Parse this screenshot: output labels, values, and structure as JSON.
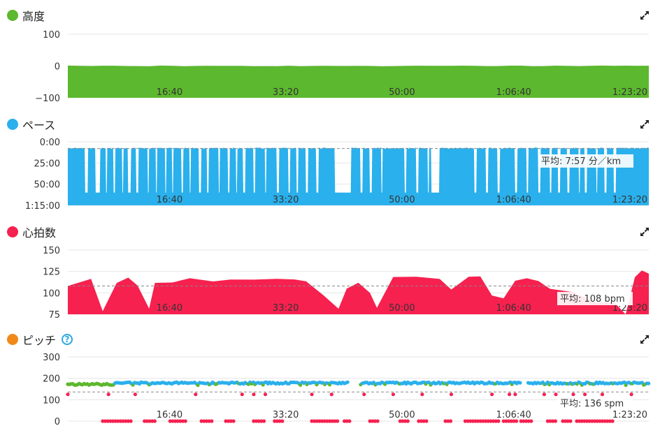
{
  "panels": [
    {
      "id": "altitude",
      "title": "高度",
      "color": "#5cb82e",
      "type": "area",
      "yticks": [
        "100",
        "0",
        "−100"
      ],
      "xticks": [
        "16:40",
        "33:20",
        "50:00",
        "1:06:40",
        "1:23:20"
      ],
      "avg_label": ""
    },
    {
      "id": "pace",
      "title": "ペース",
      "color": "#2ab0ec",
      "type": "area",
      "yticks": [
        "0:00",
        "25:00",
        "50:00",
        "1:15:00"
      ],
      "xticks": [
        "16:40",
        "33:20",
        "50:00",
        "1:06:40",
        "1:23:20"
      ],
      "avg_label": "平均: 7:57 分／km"
    },
    {
      "id": "heart",
      "title": "心拍数",
      "color": "#f6214f",
      "type": "area",
      "yticks": [
        "150",
        "125",
        "100",
        "75"
      ],
      "xticks": [
        "16:40",
        "33:20",
        "50:00",
        "1:06:40",
        "1:23:20"
      ],
      "avg_label": "平均: 108 bpm"
    },
    {
      "id": "cadence",
      "title": "ピッチ",
      "color": "#f0891a",
      "type": "scatter",
      "yticks": [
        "300",
        "200",
        "100",
        "0"
      ],
      "xticks": [
        "16:40",
        "33:20",
        "50:00",
        "1:06:40",
        "1:23:20"
      ],
      "avg_label": "平均: 136 spm"
    }
  ],
  "chart_data": [
    {
      "type": "area",
      "title": "高度",
      "ylim": [
        -100,
        100
      ],
      "xlim_seconds": [
        0,
        5000
      ],
      "x_tick_labels": [
        "16:40",
        "33:20",
        "50:00",
        "1:06:40",
        "1:23:20"
      ],
      "series": [
        {
          "values_constant": 0
        }
      ],
      "grid": true
    },
    {
      "type": "area",
      "title": "ペース",
      "ylim_minutes_per_km": [
        0,
        75
      ],
      "y_inverted": true,
      "average_minutes_per_km": 7.95,
      "x_tick_labels": [
        "16:40",
        "33:20",
        "50:00",
        "1:06:40",
        "1:23:20"
      ],
      "typical_pace_minutes_per_km": 7.5,
      "slow_segments_minutes_per_km": 60,
      "grid": true
    },
    {
      "type": "area",
      "title": "心拍数",
      "ylim": [
        75,
        150
      ],
      "average": 108,
      "x_tick_labels": [
        "16:40",
        "33:20",
        "50:00",
        "1:06:40",
        "1:23:20"
      ],
      "approx_profile": [
        [
          0,
          110
        ],
        [
          200,
          116
        ],
        [
          300,
          80
        ],
        [
          420,
          112
        ],
        [
          520,
          118
        ],
        [
          600,
          108
        ],
        [
          700,
          80
        ],
        [
          750,
          112
        ],
        [
          900,
          113
        ],
        [
          1050,
          118
        ],
        [
          1250,
          114
        ],
        [
          1400,
          116
        ],
        [
          1600,
          114
        ],
        [
          1800,
          115
        ],
        [
          1950,
          116
        ],
        [
          2050,
          112
        ],
        [
          2200,
          98
        ],
        [
          2330,
          80
        ],
        [
          2400,
          105
        ],
        [
          2500,
          112
        ],
        [
          2600,
          100
        ],
        [
          2660,
          82
        ],
        [
          2800,
          118
        ],
        [
          3000,
          120
        ],
        [
          3200,
          117
        ],
        [
          3300,
          105
        ],
        [
          3450,
          118
        ],
        [
          3550,
          120
        ],
        [
          3650,
          96
        ],
        [
          3750,
          92
        ],
        [
          3850,
          116
        ],
        [
          3950,
          118
        ],
        [
          4050,
          112
        ],
        [
          4150,
          104
        ],
        [
          4350,
          102
        ],
        [
          4550,
          88
        ],
        [
          4700,
          90
        ],
        [
          4800,
          76
        ],
        [
          4880,
          118
        ],
        [
          4940,
          128
        ],
        [
          5000,
          124
        ]
      ],
      "grid": true
    },
    {
      "type": "scatter",
      "title": "ピッチ",
      "ylim": [
        0,
        300
      ],
      "average": 136,
      "x_tick_labels": [
        "16:40",
        "33:20",
        "50:00",
        "1:06:40",
        "1:23:20"
      ],
      "series": [
        {
          "color": "#2ab0ec",
          "typical_value": 178
        },
        {
          "color": "#5cb82e",
          "typical_value": 172
        },
        {
          "color": "#f6214f",
          "typical_values": [
            125,
            0
          ]
        }
      ],
      "grid": true
    }
  ]
}
